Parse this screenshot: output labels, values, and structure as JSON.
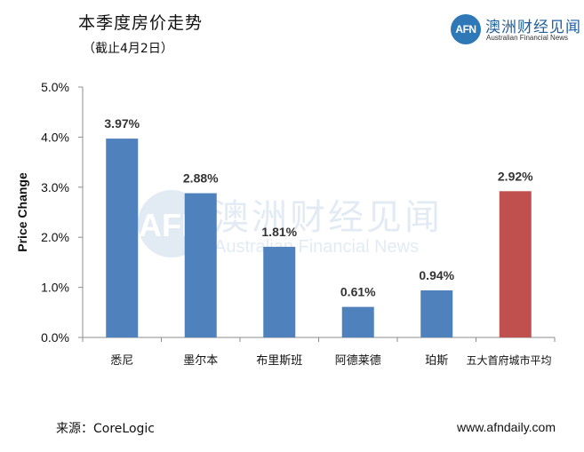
{
  "header": {
    "title": "本季度房价走势",
    "subtitle": "（截止4月2日）"
  },
  "logo": {
    "badge_text": "AFN",
    "name_cn": "澳洲财经见闻",
    "name_en": "Australian Financial News"
  },
  "watermark": {
    "badge_text": "AFN",
    "name_cn": "澳洲财经见闻",
    "name_en": "Australian Financial News"
  },
  "chart_data": {
    "type": "bar",
    "title": "本季度房价走势",
    "subtitle": "（截止4月2日）",
    "xlabel": "",
    "ylabel": "Price Change",
    "categories": [
      "悉尼",
      "墨尔本",
      "布里斯班",
      "阿德莱德",
      "珀斯",
      "五大首府城市平均"
    ],
    "values": [
      3.97,
      2.88,
      1.81,
      0.61,
      0.94,
      2.92
    ],
    "value_labels": [
      "3.97%",
      "2.88%",
      "1.81%",
      "0.61%",
      "0.94%",
      "2.92%"
    ],
    "bar_colors": [
      "#4f81bd",
      "#4f81bd",
      "#4f81bd",
      "#4f81bd",
      "#4f81bd",
      "#c0504d"
    ],
    "ylim": [
      0,
      5
    ],
    "yticks": [
      0,
      1,
      2,
      3,
      4,
      5
    ],
    "ytick_labels": [
      "0.0%",
      "1.0%",
      "2.0%",
      "3.0%",
      "4.0%",
      "5.0%"
    ],
    "grid": false,
    "legend": "none"
  },
  "footer": {
    "source": "来源：CoreLogic",
    "website": "www.afndaily.com"
  }
}
